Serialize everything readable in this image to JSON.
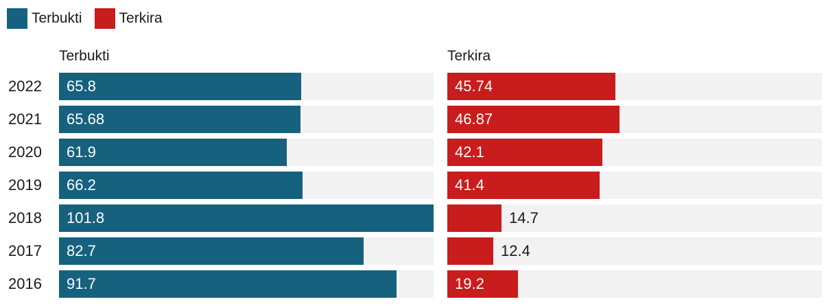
{
  "legend": [
    {
      "label": "Terbukti",
      "color": "#16617e"
    },
    {
      "label": "Terkira",
      "color": "#c91c1c"
    }
  ],
  "chart_data": {
    "type": "bar",
    "orientation": "horizontal",
    "categories": [
      "2022",
      "2021",
      "2020",
      "2019",
      "2018",
      "2017",
      "2016"
    ],
    "xlim": [
      0,
      101.8
    ],
    "series": [
      {
        "name": "Terbukti",
        "color": "#16617e",
        "values": [
          65.8,
          65.68,
          61.9,
          66.2,
          101.8,
          82.7,
          91.7
        ],
        "labels": [
          "65.8",
          "65.68",
          "61.9",
          "66.2",
          "101.8",
          "82.7",
          "91.7"
        ]
      },
      {
        "name": "Terkira",
        "color": "#c91c1c",
        "values": [
          45.74,
          46.87,
          42.1,
          41.4,
          14.7,
          12.4,
          19.2
        ],
        "labels": [
          "45.74",
          "46.87",
          "42.1",
          "41.4",
          "14.7",
          "12.4",
          "19.2"
        ]
      }
    ],
    "legend_position": "top-left",
    "grid": false
  }
}
